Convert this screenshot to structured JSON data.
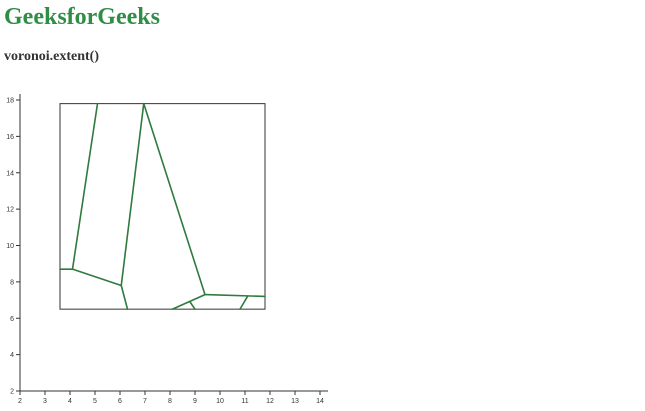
{
  "page": {
    "title": "GeeksforGeeks",
    "subtitle": "voronoi.extent()"
  },
  "colors": {
    "brand": "#2f8d46",
    "voronoi_edge": "#2f7a3e",
    "axis": "#333333"
  },
  "chart_data": {
    "type": "voronoi",
    "xlabel": "",
    "ylabel": "",
    "xlim": [
      2,
      14
    ],
    "ylim": [
      2,
      18
    ],
    "x_ticks": [
      2,
      3,
      4,
      5,
      6,
      7,
      8,
      9,
      10,
      11,
      12,
      13,
      14
    ],
    "y_ticks": [
      2,
      4,
      6,
      8,
      10,
      12,
      14,
      16,
      18
    ],
    "grid": false,
    "extent": [
      [
        3.6,
        6.5
      ],
      [
        11.8,
        17.8
      ]
    ],
    "edges": [
      [
        [
          5.1,
          17.8
        ],
        [
          4.1,
          8.7
        ]
      ],
      [
        [
          3.6,
          8.7
        ],
        [
          4.1,
          8.7
        ]
      ],
      [
        [
          4.1,
          8.7
        ],
        [
          6.05,
          7.8
        ]
      ],
      [
        [
          6.05,
          7.8
        ],
        [
          6.95,
          17.8
        ]
      ],
      [
        [
          6.05,
          7.8
        ],
        [
          6.3,
          6.5
        ]
      ],
      [
        [
          6.95,
          17.8
        ],
        [
          9.4,
          7.3
        ]
      ],
      [
        [
          9.4,
          7.3
        ],
        [
          11.8,
          7.2
        ]
      ],
      [
        [
          9.4,
          7.3
        ],
        [
          8.1,
          6.5
        ]
      ],
      [
        [
          8.8,
          6.9
        ],
        [
          9.0,
          6.5
        ]
      ],
      [
        [
          11.1,
          7.2
        ],
        [
          10.8,
          6.5
        ]
      ]
    ]
  }
}
